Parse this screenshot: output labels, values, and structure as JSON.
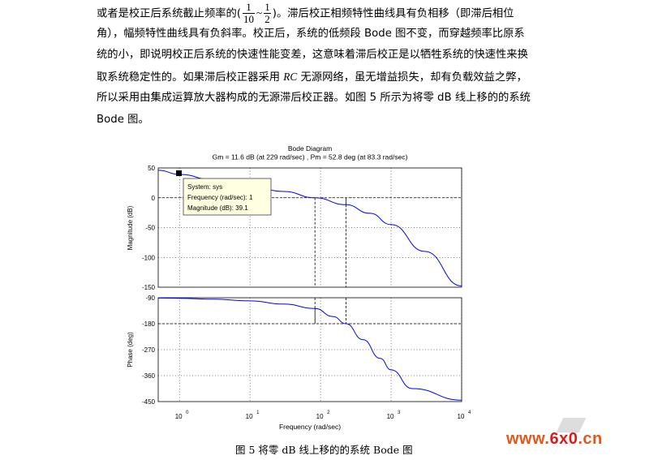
{
  "paragraph": {
    "l1_a": "或者是校正后系统截止频率的(",
    "frac1_num": "1",
    "frac1_den": "10",
    "tilde": "~",
    "frac2_num": "1",
    "frac2_den": "2",
    "l1_b": ")。滞后校正相频特性曲线具有负相移（即滞后相位",
    "l2": "角），幅频特性曲线具有负斜率。校正后，系统的低频段 Bode 图不变，而穿越频率比原系",
    "l3": "统的小，即说明校正后系统的快速性能变差，这意味着滞后校正是以牺牲系统的快速性来换",
    "l4_a": "取系统稳定性的。如果滞后校正器采用 ",
    "l4_rc": "RC",
    "l4_b": " 无源网络，虽无增益损失，却有负载效益之弊，",
    "l5": "所以采用由集成运算放大器构成的无源滞后校正器。如图 5 所示为将零 dB 线上移的的系统",
    "l6": "Bode 图。"
  },
  "figure": {
    "title": "Bode Diagram",
    "subtitle": "Gm = 11.6 dB (at 229 rad/sec) ,  Pm = 52.8 deg (at 83.3 rad/sec)",
    "xlabel": "Frequency  (rad/sec)",
    "mag_ylabel": "Magnitude (dB)",
    "phase_ylabel": "Phase (deg)",
    "mag_ticks": [
      "50",
      "0",
      "-50",
      "-100",
      "-150"
    ],
    "phase_ticks": [
      "-90",
      "-180",
      "-270",
      "-360",
      "-450"
    ],
    "x_tick_base": "10",
    "x_tick_exps": [
      "0",
      "1",
      "2",
      "3",
      "4"
    ],
    "datatip": {
      "line1": "System: sys",
      "line2": "Frequency (rad/sec): 1",
      "line3": "Magnitude (dB): 39.1"
    },
    "curve_color": "#0000ff",
    "tip_bg": "#ffffe1"
  },
  "chart_data": [
    {
      "type": "line",
      "title": "Bode Diagram",
      "subtitle": "Gm = 11.6 dB (at 229 rad/sec) ,  Pm = 52.8 deg (at 83.3 rad/sec)",
      "xlabel": "Frequency  (rad/sec)",
      "ylabel": "Magnitude (dB)",
      "xscale": "log",
      "xlim": [
        0.5,
        10000
      ],
      "ylim": [
        -150,
        50
      ],
      "series": [
        {
          "x": [
            0.5,
            1,
            3,
            10,
            30,
            83.3,
            229,
            500,
            1000,
            3000,
            10000
          ],
          "y": [
            46,
            39.1,
            30,
            20,
            10.5,
            0,
            -11.6,
            -26,
            -45,
            -90,
            -148
          ]
        }
      ],
      "markers": [
        {
          "x": 83.3,
          "label": "Pm"
        },
        {
          "x": 229,
          "label": "Gm"
        }
      ]
    },
    {
      "type": "line",
      "xlabel": "Frequency  (rad/sec)",
      "ylabel": "Phase (deg)",
      "xscale": "log",
      "xlim": [
        0.5,
        10000
      ],
      "ylim": [
        -450,
        -90
      ],
      "series": [
        {
          "x": [
            0.5,
            1,
            3,
            10,
            30,
            83.3,
            150,
            229,
            400,
            700,
            1000,
            2000,
            10000
          ],
          "y": [
            -91,
            -92,
            -95,
            -101,
            -112,
            -127.2,
            -155,
            -180,
            -235,
            -300,
            -340,
            -405,
            -445
          ]
        }
      ]
    }
  ],
  "caption": "图 5    将零 dB 线上移的的系统 Bode 图",
  "watermark": {
    "text_a": "www.",
    "text_b": "6x0",
    "text_c": ".cn"
  }
}
